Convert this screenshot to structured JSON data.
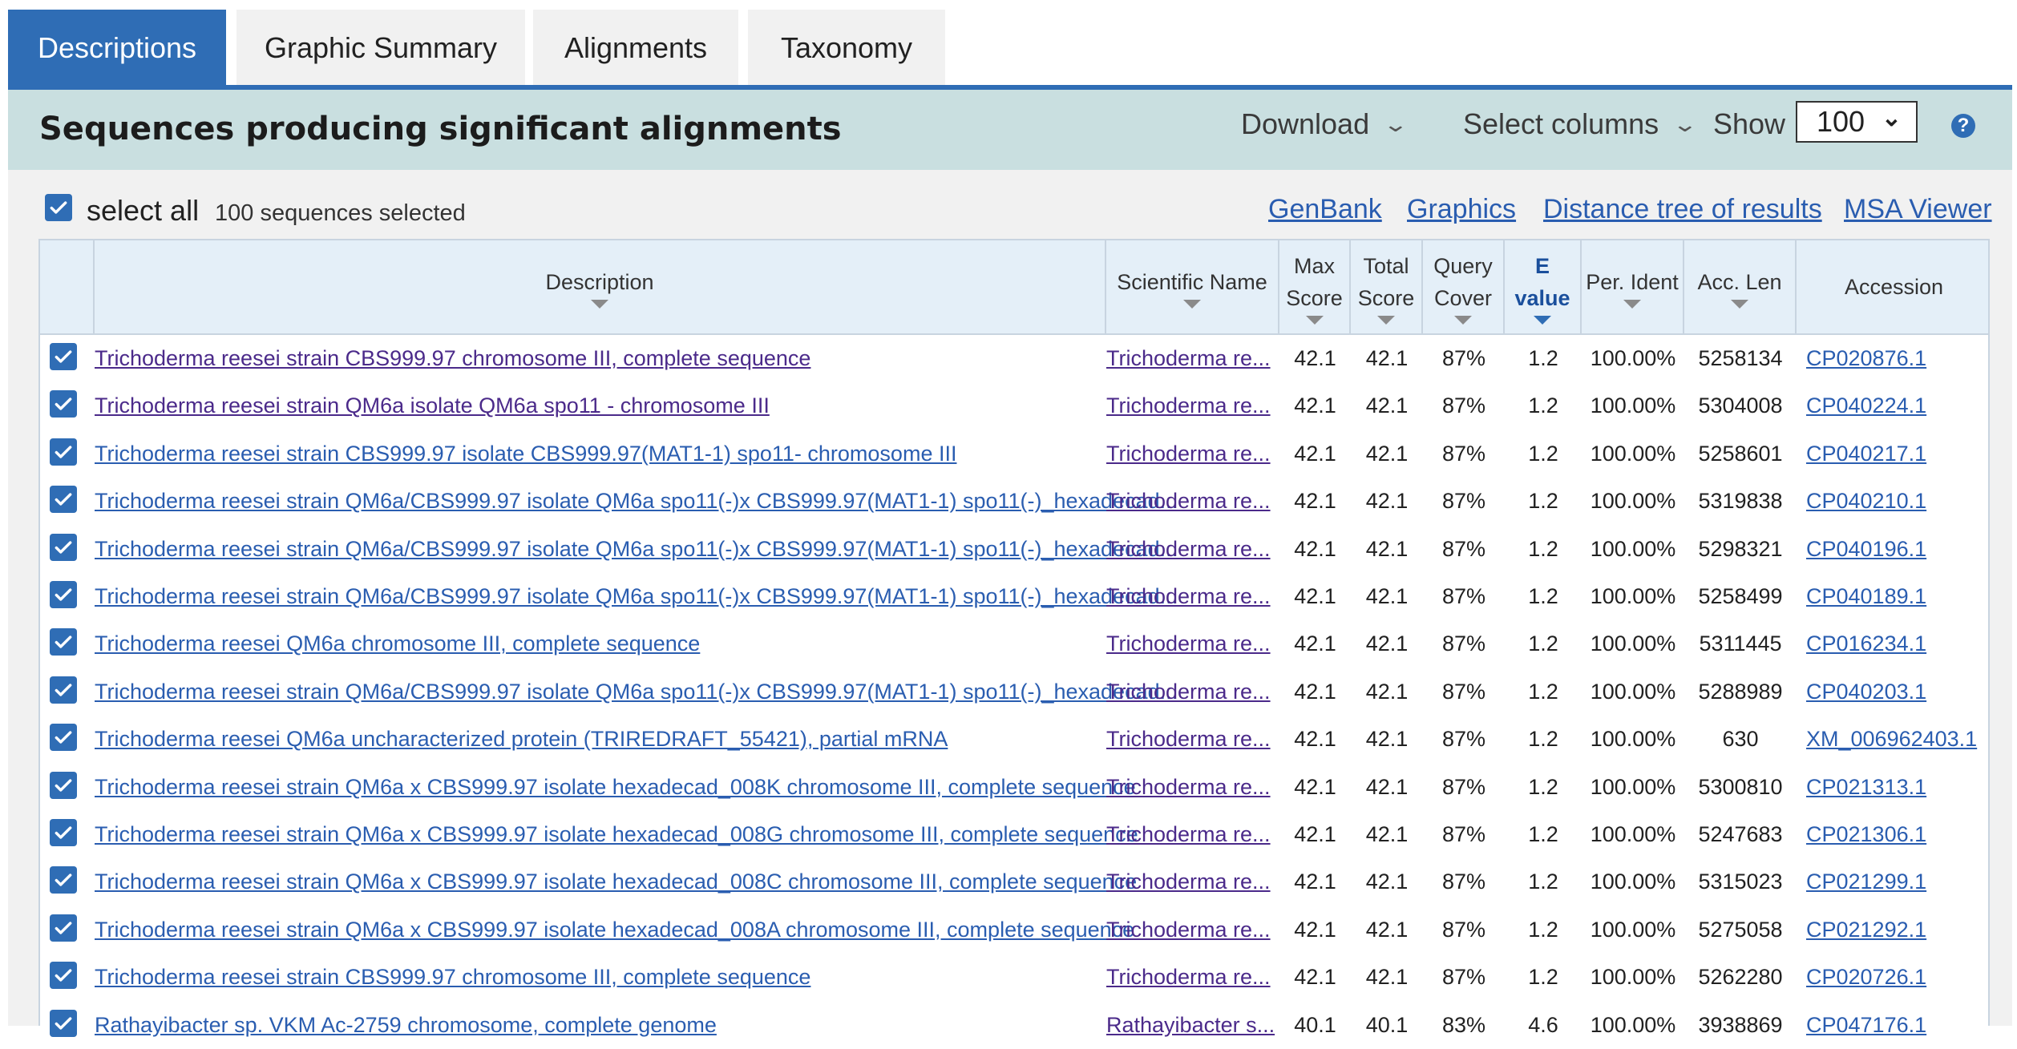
{
  "tabs": [
    {
      "label": "Descriptions",
      "active": true
    },
    {
      "label": "Graphic Summary",
      "active": false
    },
    {
      "label": "Alignments",
      "active": false
    },
    {
      "label": "Taxonomy",
      "active": false
    }
  ],
  "header": {
    "title": "Sequences producing significant alignments",
    "download_label": "Download",
    "select_columns_label": "Select columns",
    "show_label": "Show",
    "show_value": "100",
    "help_icon": "question-circle-icon"
  },
  "toolbar": {
    "select_all_label": "select all",
    "selected_count": "100 sequences selected",
    "links": [
      "GenBank",
      "Graphics",
      "Distance tree of results",
      "MSA Viewer"
    ]
  },
  "columns": [
    {
      "label": "Description"
    },
    {
      "label": "Scientific Name"
    },
    {
      "label": "Max Score"
    },
    {
      "label": "Total Score"
    },
    {
      "label": "Query Cover"
    },
    {
      "label": "E value",
      "sorted": true
    },
    {
      "label": "Per. Ident"
    },
    {
      "label": "Acc. Len"
    },
    {
      "label": "Accession"
    }
  ],
  "rows": [
    {
      "description": "Trichoderma reesei strain CBS999.97 chromosome III, complete sequence",
      "desc_visited": true,
      "sci_name": "Trichoderma re...",
      "max_score": "42.1",
      "total_score": "42.1",
      "query_cover": "87%",
      "e_value": "1.2",
      "per_ident": "100.00%",
      "acc_len": "5258134",
      "accession": "CP020876.1"
    },
    {
      "description": "Trichoderma reesei strain QM6a isolate QM6a spo11 - chromosome III",
      "desc_visited": true,
      "sci_name": "Trichoderma re...",
      "max_score": "42.1",
      "total_score": "42.1",
      "query_cover": "87%",
      "e_value": "1.2",
      "per_ident": "100.00%",
      "acc_len": "5304008",
      "accession": "CP040224.1"
    },
    {
      "description": "Trichoderma reesei strain CBS999.97 isolate CBS999.97(MAT1-1) spo11- chromosome III",
      "desc_visited": false,
      "sci_name": "Trichoderma re...",
      "max_score": "42.1",
      "total_score": "42.1",
      "query_cover": "87%",
      "e_value": "1.2",
      "per_ident": "100.00%",
      "acc_len": "5258601",
      "accession": "CP040217.1"
    },
    {
      "description": "Trichoderma reesei strain QM6a/CBS999.97 isolate QM6a spo11(-)x CBS999.97(MAT1-1) spo11(-)_hexadecad...",
      "desc_visited": false,
      "sci_name": "Trichoderma re...",
      "max_score": "42.1",
      "total_score": "42.1",
      "query_cover": "87%",
      "e_value": "1.2",
      "per_ident": "100.00%",
      "acc_len": "5319838",
      "accession": "CP040210.1"
    },
    {
      "description": "Trichoderma reesei strain QM6a/CBS999.97 isolate QM6a spo11(-)x CBS999.97(MAT1-1) spo11(-)_hexadecad...",
      "desc_visited": false,
      "sci_name": "Trichoderma re...",
      "max_score": "42.1",
      "total_score": "42.1",
      "query_cover": "87%",
      "e_value": "1.2",
      "per_ident": "100.00%",
      "acc_len": "5298321",
      "accession": "CP040196.1"
    },
    {
      "description": "Trichoderma reesei strain QM6a/CBS999.97 isolate QM6a spo11(-)x CBS999.97(MAT1-1) spo11(-)_hexadecad...",
      "desc_visited": false,
      "sci_name": "Trichoderma re...",
      "max_score": "42.1",
      "total_score": "42.1",
      "query_cover": "87%",
      "e_value": "1.2",
      "per_ident": "100.00%",
      "acc_len": "5258499",
      "accession": "CP040189.1"
    },
    {
      "description": "Trichoderma reesei QM6a chromosome III, complete sequence",
      "desc_visited": false,
      "sci_name": "Trichoderma re...",
      "max_score": "42.1",
      "total_score": "42.1",
      "query_cover": "87%",
      "e_value": "1.2",
      "per_ident": "100.00%",
      "acc_len": "5311445",
      "accession": "CP016234.1"
    },
    {
      "description": "Trichoderma reesei strain QM6a/CBS999.97 isolate QM6a spo11(-)x CBS999.97(MAT1-1) spo11(-)_hexadecad...",
      "desc_visited": false,
      "sci_name": "Trichoderma re...",
      "max_score": "42.1",
      "total_score": "42.1",
      "query_cover": "87%",
      "e_value": "1.2",
      "per_ident": "100.00%",
      "acc_len": "5288989",
      "accession": "CP040203.1"
    },
    {
      "description": "Trichoderma reesei QM6a uncharacterized protein (TRIREDRAFT_55421), partial mRNA",
      "desc_visited": false,
      "sci_name": "Trichoderma re...",
      "max_score": "42.1",
      "total_score": "42.1",
      "query_cover": "87%",
      "e_value": "1.2",
      "per_ident": "100.00%",
      "acc_len": "630",
      "accession": "XM_006962403.1"
    },
    {
      "description": "Trichoderma reesei strain QM6a x CBS999.97 isolate hexadecad_008K chromosome III, complete sequence",
      "desc_visited": false,
      "sci_name": "Trichoderma re...",
      "max_score": "42.1",
      "total_score": "42.1",
      "query_cover": "87%",
      "e_value": "1.2",
      "per_ident": "100.00%",
      "acc_len": "5300810",
      "accession": "CP021313.1"
    },
    {
      "description": "Trichoderma reesei strain QM6a x CBS999.97 isolate hexadecad_008G chromosome III, complete sequence",
      "desc_visited": false,
      "sci_name": "Trichoderma re...",
      "max_score": "42.1",
      "total_score": "42.1",
      "query_cover": "87%",
      "e_value": "1.2",
      "per_ident": "100.00%",
      "acc_len": "5247683",
      "accession": "CP021306.1"
    },
    {
      "description": "Trichoderma reesei strain QM6a x CBS999.97 isolate hexadecad_008C chromosome III, complete sequence",
      "desc_visited": false,
      "sci_name": "Trichoderma re...",
      "max_score": "42.1",
      "total_score": "42.1",
      "query_cover": "87%",
      "e_value": "1.2",
      "per_ident": "100.00%",
      "acc_len": "5315023",
      "accession": "CP021299.1"
    },
    {
      "description": "Trichoderma reesei strain QM6a x CBS999.97 isolate hexadecad_008A chromosome III, complete sequence",
      "desc_visited": false,
      "sci_name": "Trichoderma re...",
      "max_score": "42.1",
      "total_score": "42.1",
      "query_cover": "87%",
      "e_value": "1.2",
      "per_ident": "100.00%",
      "acc_len": "5275058",
      "accession": "CP021292.1"
    },
    {
      "description": "Trichoderma reesei strain CBS999.97 chromosome III, complete sequence",
      "desc_visited": false,
      "sci_name": "Trichoderma re...",
      "max_score": "42.1",
      "total_score": "42.1",
      "query_cover": "87%",
      "e_value": "1.2",
      "per_ident": "100.00%",
      "acc_len": "5262280",
      "accession": "CP020726.1"
    },
    {
      "description": "Rathayibacter sp. VKM Ac-2759 chromosome, complete genome",
      "desc_visited": false,
      "sci_name": "Rathayibacter s...",
      "max_score": "40.1",
      "total_score": "40.1",
      "query_cover": "83%",
      "e_value": "4.6",
      "per_ident": "100.00%",
      "acc_len": "3938869",
      "accession": "CP047176.1"
    }
  ],
  "colors": {
    "accent": "#2f6db5",
    "header_bg": "#c9dfe0",
    "link": "#2a5db0",
    "visited": "#4b2a8a"
  }
}
